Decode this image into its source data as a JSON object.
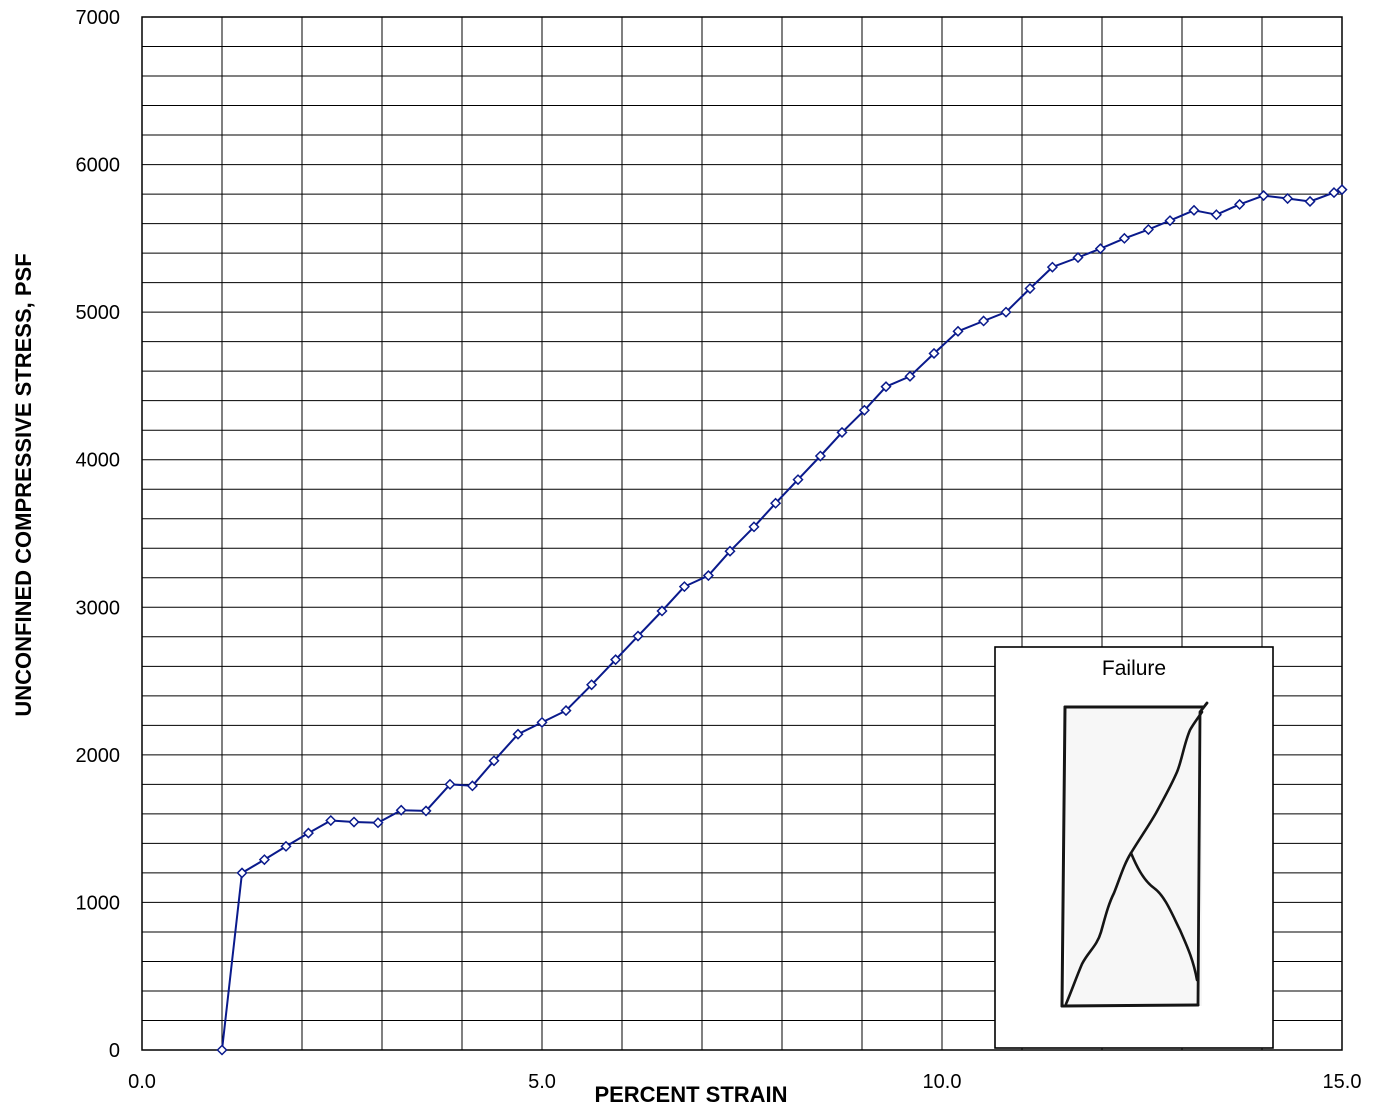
{
  "chart_data": {
    "type": "line",
    "title": "",
    "xlabel": "PERCENT STRAIN",
    "ylabel": "UNCONFINED COMPRESSIVE STRESS, PSF",
    "xlim": [
      0,
      15
    ],
    "ylim": [
      0,
      7000
    ],
    "x_ticks": [
      "0.0",
      "5.0",
      "10.0",
      "15.0"
    ],
    "y_ticks": [
      "0",
      "1000",
      "2000",
      "3000",
      "4000",
      "5000",
      "6000",
      "7000"
    ],
    "grid": true,
    "series": [
      {
        "color": "#0a1a8c",
        "marker": "diamond",
        "points": [
          [
            1.0,
            0
          ],
          [
            1.25,
            1200
          ],
          [
            1.53,
            1290
          ],
          [
            1.8,
            1380
          ],
          [
            2.08,
            1470
          ],
          [
            2.36,
            1555
          ],
          [
            2.65,
            1545
          ],
          [
            2.95,
            1540
          ],
          [
            3.24,
            1625
          ],
          [
            3.55,
            1620
          ],
          [
            3.85,
            1800
          ],
          [
            4.13,
            1790
          ],
          [
            4.4,
            1960
          ],
          [
            4.7,
            2140
          ],
          [
            5.0,
            2220
          ],
          [
            5.3,
            2300
          ],
          [
            5.62,
            2475
          ],
          [
            5.92,
            2645
          ],
          [
            6.2,
            2805
          ],
          [
            6.5,
            2975
          ],
          [
            6.78,
            3140
          ],
          [
            7.08,
            3215
          ],
          [
            7.35,
            3380
          ],
          [
            7.65,
            3545
          ],
          [
            7.92,
            3705
          ],
          [
            8.2,
            3865
          ],
          [
            8.48,
            4025
          ],
          [
            8.75,
            4185
          ],
          [
            9.03,
            4335
          ],
          [
            9.3,
            4495
          ],
          [
            9.6,
            4565
          ],
          [
            9.9,
            4720
          ],
          [
            10.2,
            4870
          ],
          [
            10.52,
            4940
          ],
          [
            10.8,
            5000
          ],
          [
            11.1,
            5160
          ],
          [
            11.38,
            5305
          ],
          [
            11.7,
            5370
          ],
          [
            11.98,
            5430
          ],
          [
            12.28,
            5500
          ],
          [
            12.58,
            5560
          ],
          [
            12.85,
            5620
          ],
          [
            13.15,
            5690
          ],
          [
            13.43,
            5660
          ],
          [
            13.72,
            5730
          ],
          [
            14.02,
            5790
          ],
          [
            14.32,
            5770
          ],
          [
            14.6,
            5750
          ],
          [
            14.9,
            5810
          ],
          [
            15.0,
            5830
          ]
        ]
      }
    ],
    "inset": {
      "title": "Failure",
      "placement": "bottom-right"
    }
  }
}
